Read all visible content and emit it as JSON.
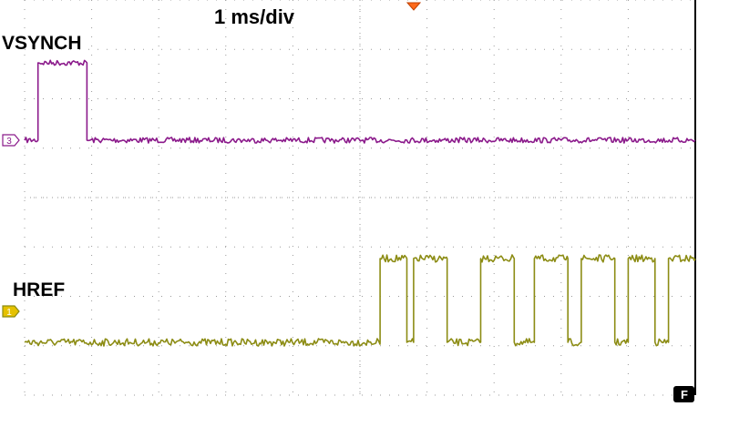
{
  "timebase_label": "1 ms/div",
  "channels": [
    {
      "id": "3",
      "name": "VSYNCH",
      "color": "#8B1A8B"
    },
    {
      "id": "1",
      "name": "HREF",
      "color": "#8C8C14"
    }
  ],
  "trigger_mode_badge": "F",
  "trigger_marker_color": "#FF6A1A",
  "grid": {
    "h_divisions": 10,
    "v_divisions": 8,
    "style": "dotted"
  },
  "chart_data": {
    "type": "line",
    "title": "1 ms/div",
    "xlabel": "",
    "ylabel": "",
    "x_unit": "ms",
    "xlim": [
      0,
      10
    ],
    "grid": true,
    "series": [
      {
        "name": "VSYNCH",
        "x": [
          0,
          0.2,
          0.2,
          0.93,
          0.93,
          10
        ],
        "y": [
          0,
          0,
          1,
          1,
          0,
          0
        ]
      },
      {
        "name": "HREF",
        "x": [
          0,
          5.3,
          5.3,
          5.7,
          5.7,
          5.8,
          5.8,
          6.3,
          6.3,
          6.8,
          6.8,
          7.3,
          7.3,
          7.6,
          7.6,
          8.1,
          8.1,
          8.3,
          8.3,
          8.8,
          8.8,
          9.0,
          9.0,
          9.4,
          9.4,
          9.6,
          9.6,
          10
        ],
        "y": [
          0,
          0,
          1,
          1,
          0,
          0,
          1,
          1,
          0,
          0,
          1,
          1,
          0,
          0,
          1,
          1,
          0,
          0,
          1,
          1,
          0,
          0,
          1,
          1,
          0,
          0,
          1,
          1
        ]
      }
    ]
  }
}
